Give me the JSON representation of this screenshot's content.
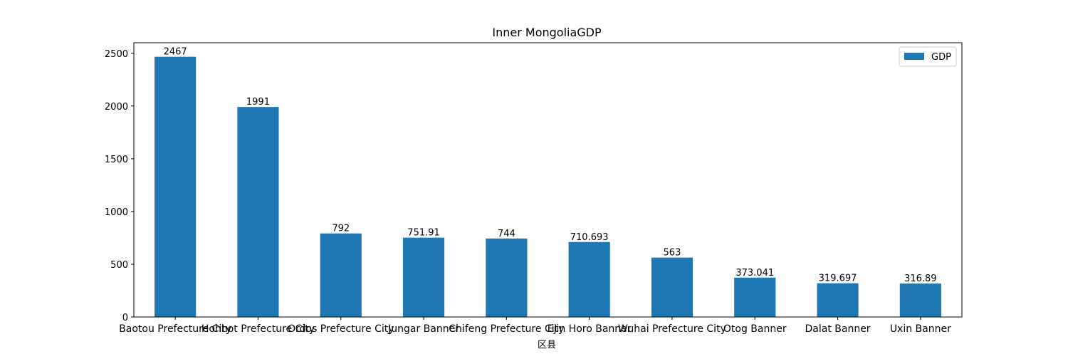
{
  "chart_data": {
    "type": "bar",
    "title": "Inner MongoliaGDP",
    "xlabel": "区县",
    "ylabel": "",
    "categories": [
      "Baotou Prefecture City",
      "Hohhot Prefecture City",
      "Ordos Prefecture City",
      "Jungar Banner",
      "Chifeng Prefecture City",
      "Ejin Horo Banner",
      "Wuhai Prefecture City",
      "Otog Banner",
      "Dalat Banner",
      "Uxin Banner"
    ],
    "series": [
      {
        "name": "GDP",
        "values": [
          2467,
          1991,
          792,
          751.91,
          744,
          710.693,
          563,
          373.041,
          319.697,
          316.89
        ]
      }
    ],
    "value_labels": [
      "2467",
      "1991",
      "792",
      "751.91",
      "744",
      "710.693",
      "563",
      "373.041",
      "319.697",
      "316.89"
    ],
    "ylim": [
      0,
      2600
    ],
    "yticks": [
      0,
      500,
      1000,
      1500,
      2000,
      2500
    ],
    "grid": false,
    "legend": "top-right",
    "colors": {
      "bar": "#1f77b4",
      "axis": "#000000",
      "legend_border": "#cccccc"
    }
  }
}
